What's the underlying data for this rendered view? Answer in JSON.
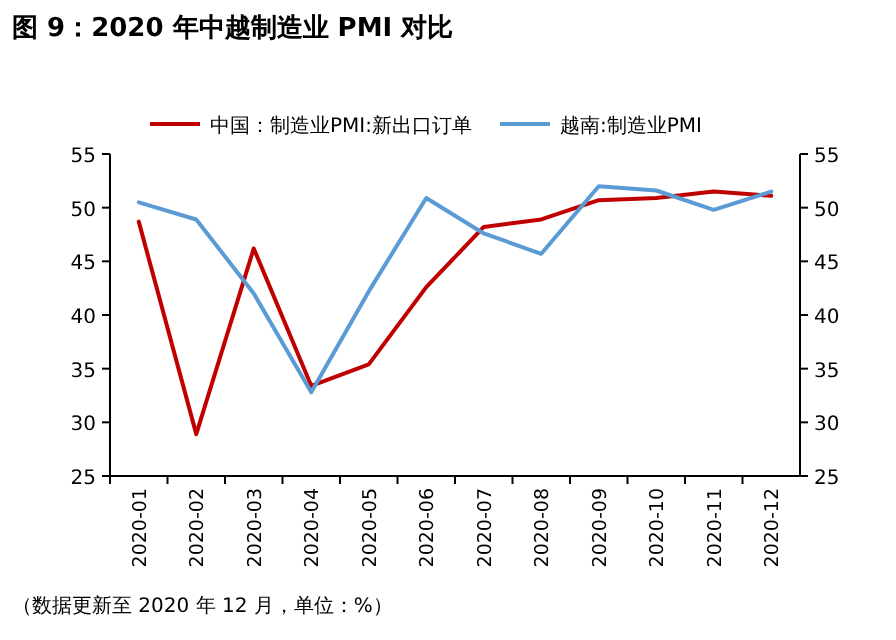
{
  "chart_data": {
    "type": "line",
    "title": "图 9：2020 年中越制造业 PMI 对比",
    "categories": [
      "2020-01",
      "2020-02",
      "2020-03",
      "2020-04",
      "2020-05",
      "2020-06",
      "2020-07",
      "2020-08",
      "2020-09",
      "2020-10",
      "2020-11",
      "2020-12"
    ],
    "series": [
      {
        "name": "中国：制造业PMI:新出口订单",
        "color": "#c00000",
        "values": [
          48.7,
          28.9,
          46.2,
          33.4,
          35.4,
          42.6,
          48.2,
          48.9,
          50.7,
          50.9,
          51.5,
          51.1
        ]
      },
      {
        "name": "越南:制造业PMI",
        "color": "#5b9bd5",
        "values": [
          50.5,
          48.9,
          42.0,
          32.8,
          42.2,
          50.9,
          47.6,
          45.7,
          52.0,
          51.6,
          49.8,
          51.5
        ]
      }
    ],
    "ylim": [
      25,
      55
    ],
    "yticks": [
      25,
      30,
      35,
      40,
      45,
      50,
      55
    ],
    "y2lim": [
      25,
      55
    ],
    "y2ticks": [
      25,
      30,
      35,
      40,
      45,
      50,
      55
    ],
    "legend": "top",
    "annotations": [
      "（数据更新至 2020 年 12 月，单位：%）"
    ]
  }
}
